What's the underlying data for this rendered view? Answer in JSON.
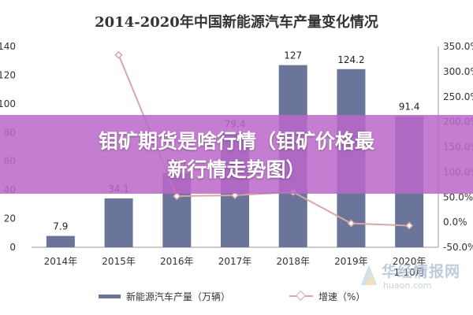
{
  "title": "2014-2020年中国新能源汽车产量变化情况",
  "banner_text": "钼矿期货是啥行情（钼矿价格最新行情走势图）",
  "watermark": {
    "name": "华经情报网",
    "url": "huaon.com"
  },
  "colors": {
    "bar": "#6a7599",
    "line": "#d8a7a7",
    "banner": "#ba68c8"
  },
  "chart_data": {
    "type": "bar",
    "title": "2014-2020年中国新能源汽车产量变化情况",
    "categories": [
      "2014年",
      "2015年",
      "2016年",
      "2017年",
      "2018年",
      "2019年",
      "2020年 1-10月"
    ],
    "series": [
      {
        "name": "新能源汽车产量（万辆）",
        "type": "bar",
        "axis": "left",
        "values": [
          7.9,
          34.1,
          51.7,
          79.4,
          127,
          124.2,
          91.4
        ],
        "labels": [
          "7.9",
          "34.1",
          "51.7",
          "79.4",
          "127",
          "124.2",
          "91.4"
        ]
      },
      {
        "name": "增速（%）",
        "type": "line",
        "axis": "right",
        "values": [
          null,
          333.0,
          51.7,
          53.6,
          60.0,
          -2.3,
          -7.0
        ]
      }
    ],
    "y_left": {
      "min": 0,
      "max": 140,
      "ticks": [
        0,
        20,
        40,
        60,
        80,
        100,
        120,
        140
      ],
      "tick_labels": [
        "0",
        "20",
        "40",
        "60",
        "80",
        "100",
        "120",
        "140"
      ]
    },
    "y_right": {
      "min": -50,
      "max": 350,
      "ticks": [
        -50,
        0,
        50,
        100,
        150,
        200,
        250,
        300,
        350
      ],
      "tick_labels": [
        "-50.0%",
        "0.0%",
        "50.0%",
        "100.0%",
        "150.0%",
        "200.0%",
        "250.0%",
        "300.0%",
        "350.0%"
      ]
    },
    "grid": false,
    "legend": "bottom"
  }
}
